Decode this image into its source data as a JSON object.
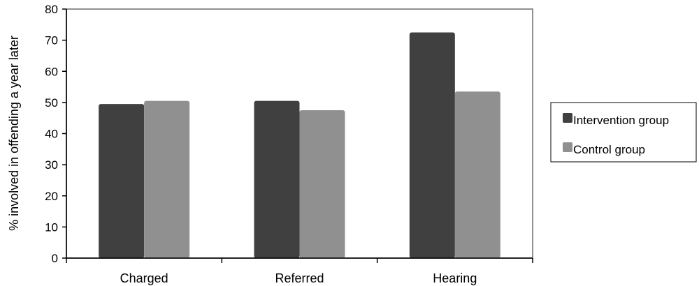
{
  "chart_data": {
    "type": "bar",
    "title": "",
    "xlabel": "",
    "ylabel": "% involved in offending a year later",
    "ylim": [
      0,
      80
    ],
    "yticks": [
      0,
      10,
      20,
      30,
      40,
      50,
      60,
      70,
      80
    ],
    "categories": [
      "Charged",
      "Referred",
      "Hearing"
    ],
    "series": [
      {
        "name": "Intervention group",
        "color": "#404040",
        "values": [
          49.5,
          50.5,
          72.5
        ]
      },
      {
        "name": "Control group",
        "color": "#909090",
        "values": [
          50.5,
          47.5,
          53.5
        ]
      }
    ],
    "grid": false,
    "legend_position": "right"
  }
}
